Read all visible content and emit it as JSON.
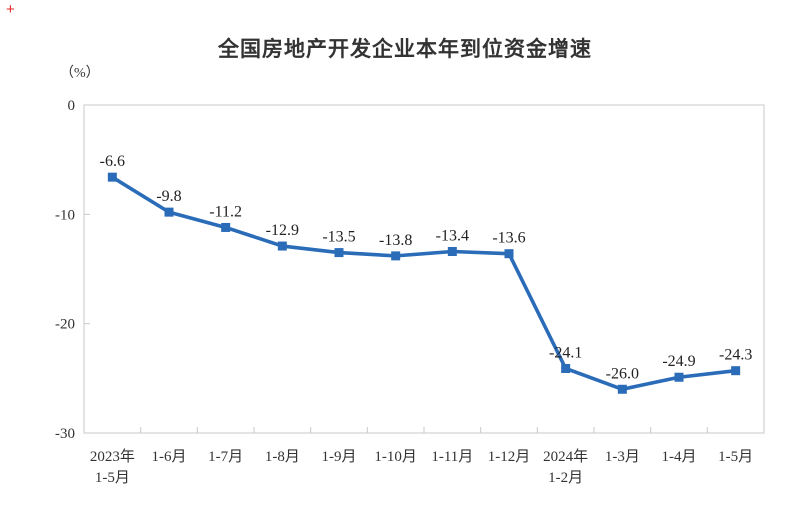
{
  "page": {
    "corner_plus": "+"
  },
  "chart_data": {
    "type": "line",
    "title": "全国房地产开发企业本年到位资金增速",
    "unit_label": "（%）",
    "categories": [
      "2023年\n1-5月",
      "1-6月",
      "1-7月",
      "1-8月",
      "1-9月",
      "1-10月",
      "1-11月",
      "1-12月",
      "2024年\n1-2月",
      "1-3月",
      "1-4月",
      "1-5月"
    ],
    "values": [
      -6.6,
      -9.8,
      -11.2,
      -12.9,
      -13.5,
      -13.8,
      -13.4,
      -13.6,
      -24.1,
      -26.0,
      -24.9,
      -24.3
    ],
    "labels": [
      "-6.6",
      "-9.8",
      "-11.2",
      "-12.9",
      "-13.5",
      "-13.8",
      "-13.4",
      "-13.6",
      "-24.1",
      "-26.0",
      "-24.9",
      "-24.3"
    ],
    "y_ticks": [
      0,
      -10,
      -20,
      -30
    ],
    "ylim": [
      -30,
      0
    ],
    "grid": false,
    "legend": null,
    "marker": "square",
    "line_color": "#2a6cb8",
    "axis_color": "#c9c9c9",
    "text_color": "#333333"
  }
}
